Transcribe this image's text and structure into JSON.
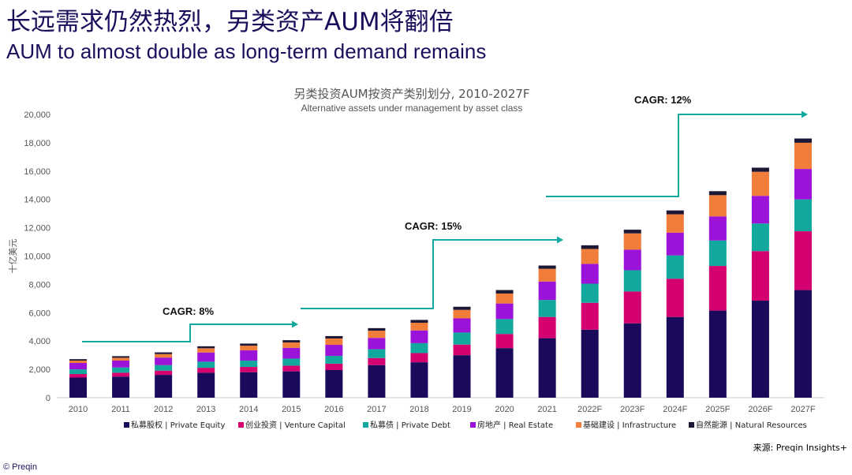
{
  "header": {
    "title_zh": "长远需求仍然热烈，另类资产AUM将翻倍",
    "title_en": "AUM to almost double as long-term demand remains"
  },
  "chart_data": {
    "type": "bar",
    "stacked": true,
    "title": "另类投资AUM按资产类别划分, 2010-2027F",
    "subtitle": "Alternative assets under management by asset class",
    "ylabel": "十亿美元",
    "ylim": [
      0,
      20000
    ],
    "yticks": [
      0,
      2000,
      4000,
      6000,
      8000,
      10000,
      12000,
      14000,
      16000,
      18000,
      20000
    ],
    "ytick_labels": [
      "0",
      "2,000",
      "4,000",
      "6,000",
      "8,000",
      "10,000",
      "12,000",
      "14,000",
      "16,000",
      "18,000",
      "20,000"
    ],
    "categories": [
      "2010",
      "2011",
      "2012",
      "2013",
      "2014",
      "2015",
      "2016",
      "2017",
      "2018",
      "2019",
      "2020",
      "2021",
      "2022F",
      "2023F",
      "2024F",
      "2025F",
      "2026F",
      "2027F"
    ],
    "series": [
      {
        "name": "私募股权 | Private Equity",
        "color": "#1b0a5c",
        "values": [
          1420,
          1490,
          1610,
          1760,
          1800,
          1860,
          1950,
          2300,
          2500,
          3000,
          3500,
          4200,
          4800,
          5250,
          5700,
          6150,
          6850,
          7600
        ]
      },
      {
        "name": "创业投资 | Venture Capital",
        "color": "#d4006f",
        "values": [
          250,
          280,
          300,
          350,
          370,
          400,
          450,
          500,
          650,
          750,
          1000,
          1500,
          1900,
          2250,
          2700,
          3150,
          3500,
          4150
        ]
      },
      {
        "name": "私募债 | Private Debt",
        "color": "#13a89e",
        "values": [
          330,
          360,
          390,
          430,
          450,
          500,
          550,
          620,
          700,
          850,
          1050,
          1200,
          1350,
          1500,
          1650,
          1800,
          1950,
          2250
        ]
      },
      {
        "name": "房地产 | Real Estate",
        "color": "#9b12d8",
        "values": [
          450,
          490,
          530,
          650,
          720,
          760,
          780,
          800,
          900,
          1000,
          1100,
          1300,
          1400,
          1450,
          1600,
          1700,
          1950,
          2150
        ]
      },
      {
        "name": "基础建设 | Infrastructure",
        "color": "#f07d3a",
        "values": [
          170,
          200,
          250,
          300,
          330,
          380,
          450,
          510,
          540,
          600,
          700,
          900,
          1050,
          1150,
          1300,
          1500,
          1700,
          1850
        ]
      },
      {
        "name": "自然能源 | Natural Resources",
        "color": "#1c1735",
        "values": [
          100,
          110,
          120,
          140,
          150,
          160,
          170,
          180,
          200,
          220,
          250,
          230,
          260,
          260,
          270,
          280,
          290,
          300
        ]
      }
    ],
    "annotations": [
      {
        "label": "CAGR: 8%",
        "from": "2010",
        "to": "2015"
      },
      {
        "label": "CAGR: 15%",
        "from": "2015",
        "to": "2022F"
      },
      {
        "label": "CAGR: 12%",
        "from": "2022F",
        "to": "2027F"
      }
    ],
    "legend_position": "bottom",
    "grid": false
  },
  "source": "来源: Preqin Insights+",
  "copyright": "© Preqin",
  "colors": {
    "brand": "#1b0f5c",
    "arrow": "#13a89e"
  }
}
